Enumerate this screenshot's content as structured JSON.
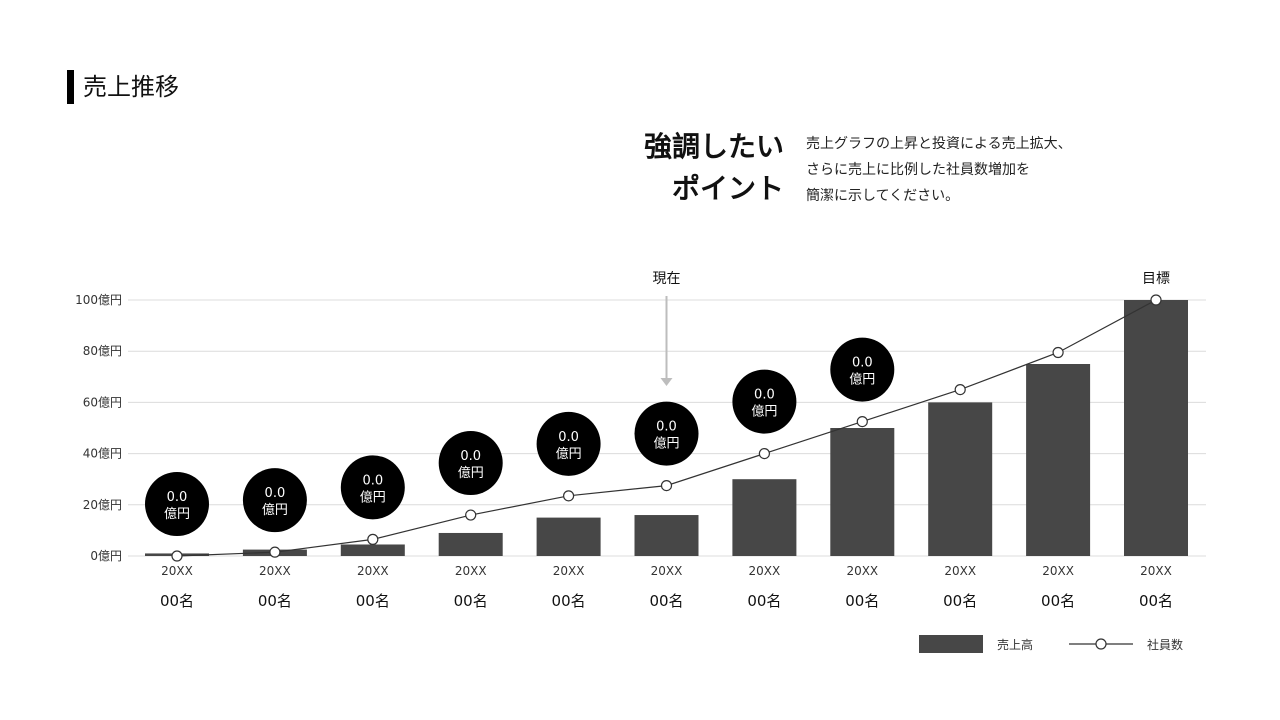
{
  "page": {
    "title": "売上推移",
    "headline_line1": "強調したい",
    "headline_line2": "ポイント",
    "description": "売上グラフの上昇と投資による売上拡大、\nさらに売上に比例した社員数増加を\n簡潔に示してください。"
  },
  "chart_data": {
    "type": "bar+line",
    "categories": [
      "20XX",
      "20XX",
      "20XX",
      "20XX",
      "20XX",
      "20XX",
      "20XX",
      "20XX",
      "20XX",
      "20XX",
      "20XX"
    ],
    "employee_labels": [
      "00名",
      "00名",
      "00名",
      "00名",
      "00名",
      "00名",
      "00名",
      "00名",
      "00名",
      "00名",
      "00名"
    ],
    "ylim": [
      0,
      100
    ],
    "yticks": [
      0,
      20,
      40,
      60,
      80,
      100
    ],
    "ytick_labels": [
      "0億円",
      "20億円",
      "40億円",
      "60億円",
      "80億円",
      "100億円"
    ],
    "grid": true,
    "series": [
      {
        "name": "売上高",
        "type": "bar",
        "color": "#474747",
        "values": [
          1,
          2.5,
          4.5,
          9,
          15,
          16,
          30,
          50,
          60,
          75,
          100
        ]
      },
      {
        "name": "社員数",
        "type": "line",
        "color": "#333333",
        "values": [
          0,
          1.5,
          6.5,
          16,
          23.5,
          27.5,
          40,
          52.5,
          65,
          79.5,
          100
        ]
      }
    ],
    "bubble_labels": [
      [
        "0.0",
        "億円"
      ],
      [
        "0.0",
        "億円"
      ],
      [
        "0.0",
        "億円"
      ],
      [
        "0.0",
        "億円"
      ],
      [
        "0.0",
        "億円"
      ],
      [
        "0.0",
        "億円"
      ],
      [
        "0.0",
        "億円"
      ],
      [
        "0.0",
        "億円"
      ]
    ],
    "annotations": [
      {
        "text": "現在",
        "category_index": 5,
        "arrow": true
      },
      {
        "text": "目標",
        "category_index": 10,
        "arrow": false
      }
    ],
    "legend": {
      "position": "bottom-right",
      "bar_label": "売上高",
      "line_label": "社員数"
    }
  }
}
